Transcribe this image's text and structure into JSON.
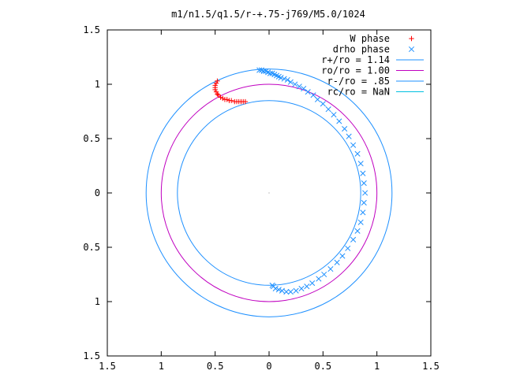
{
  "chart_data": {
    "type": "scatter",
    "title": "m1/n1.5/q1.5/r-+.75-j769/M5.0/1024",
    "xlabel": "",
    "ylabel": "",
    "xlim": [
      -1.5,
      1.5
    ],
    "ylim": [
      -1.5,
      1.5
    ],
    "x_tick_values": [
      -1.5,
      -1,
      -0.5,
      0,
      0.5,
      1,
      1.5
    ],
    "x_tick_labels": [
      "1.5",
      "1",
      "0.5",
      "0",
      "0.5",
      "1",
      "1.5"
    ],
    "y_tick_values": [
      1.5,
      1,
      0.5,
      0,
      -0.5,
      -1,
      -1.5
    ],
    "y_tick_labels": [
      "1.5",
      "1",
      "0.5",
      "0",
      "0.5",
      "1",
      "1.5"
    ],
    "grid": false,
    "legend_position": "top-right",
    "series": [
      {
        "name": "W phase",
        "kind": "points",
        "marker": "plus",
        "color": "#ff0000",
        "points": [
          [
            -0.48,
            1.03
          ],
          [
            -0.49,
            1.01
          ],
          [
            -0.5,
            0.99
          ],
          [
            -0.5,
            0.97
          ],
          [
            -0.5,
            0.95
          ],
          [
            -0.49,
            0.93
          ],
          [
            -0.48,
            0.91
          ],
          [
            -0.47,
            0.9
          ],
          [
            -0.45,
            0.88
          ],
          [
            -0.43,
            0.87
          ],
          [
            -0.41,
            0.86
          ],
          [
            -0.39,
            0.86
          ],
          [
            -0.37,
            0.85
          ],
          [
            -0.35,
            0.85
          ],
          [
            -0.32,
            0.84
          ],
          [
            -0.3,
            0.84
          ],
          [
            -0.28,
            0.84
          ],
          [
            -0.26,
            0.84
          ],
          [
            -0.24,
            0.84
          ],
          [
            -0.22,
            0.84
          ]
        ]
      },
      {
        "name": "drho phase",
        "kind": "points",
        "marker": "cross",
        "color": "#1e90ff",
        "points": [
          [
            -0.09,
            1.13
          ],
          [
            -0.07,
            1.13
          ],
          [
            -0.05,
            1.12
          ],
          [
            -0.03,
            1.12
          ],
          [
            -0.01,
            1.11
          ],
          [
            0.01,
            1.1
          ],
          [
            0.03,
            1.1
          ],
          [
            0.05,
            1.09
          ],
          [
            0.07,
            1.08
          ],
          [
            0.09,
            1.07
          ],
          [
            0.11,
            1.06
          ],
          [
            0.14,
            1.05
          ],
          [
            0.17,
            1.04
          ],
          [
            0.2,
            1.02
          ],
          [
            0.24,
            1.0
          ],
          [
            0.28,
            0.98
          ],
          [
            0.32,
            0.96
          ],
          [
            0.36,
            0.93
          ],
          [
            0.41,
            0.9
          ],
          [
            0.45,
            0.86
          ],
          [
            0.5,
            0.82
          ],
          [
            0.55,
            0.77
          ],
          [
            0.6,
            0.72
          ],
          [
            0.65,
            0.66
          ],
          [
            0.7,
            0.59
          ],
          [
            0.74,
            0.52
          ],
          [
            0.78,
            0.44
          ],
          [
            0.82,
            0.36
          ],
          [
            0.85,
            0.27
          ],
          [
            0.87,
            0.18
          ],
          [
            0.88,
            0.09
          ],
          [
            0.89,
            0.0
          ],
          [
            0.88,
            -0.09
          ],
          [
            0.87,
            -0.18
          ],
          [
            0.85,
            -0.27
          ],
          [
            0.82,
            -0.35
          ],
          [
            0.78,
            -0.43
          ],
          [
            0.73,
            -0.51
          ],
          [
            0.68,
            -0.58
          ],
          [
            0.63,
            -0.64
          ],
          [
            0.57,
            -0.7
          ],
          [
            0.51,
            -0.75
          ],
          [
            0.46,
            -0.79
          ],
          [
            0.4,
            -0.83
          ],
          [
            0.35,
            -0.86
          ],
          [
            0.3,
            -0.88
          ],
          [
            0.25,
            -0.9
          ],
          [
            0.2,
            -0.91
          ],
          [
            0.16,
            -0.91
          ],
          [
            0.12,
            -0.9
          ],
          [
            0.09,
            -0.89
          ],
          [
            0.06,
            -0.88
          ],
          [
            0.04,
            -0.86
          ],
          [
            0.03,
            -0.85
          ]
        ]
      },
      {
        "name": "r+/ro = 1.14",
        "kind": "circle",
        "radius": 1.14,
        "color": "#1e90ff"
      },
      {
        "name": "ro/ro = 1.00",
        "kind": "circle",
        "radius": 1.0,
        "color": "#c000c0"
      },
      {
        "name": "r-/ro = .85",
        "kind": "circle",
        "radius": 0.85,
        "color": "#1e90ff"
      },
      {
        "name": "rc/ro = NaN",
        "kind": "circle",
        "radius": null,
        "color": "#00c0e0"
      }
    ]
  }
}
